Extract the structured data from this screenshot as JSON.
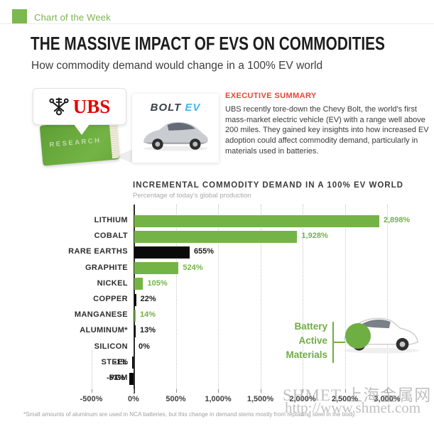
{
  "header": {
    "label": "Chart of the Week",
    "badge_color": "#7cb84e",
    "label_color": "#7cb34d"
  },
  "title": "THE MASSIVE IMPACT OF EVS ON COMMODITIES",
  "subtitle": "How commodity demand would change in a 100% EV world",
  "source_graphic": {
    "ubs_label": "UBS",
    "research_label": "RESEARCH",
    "bolt_label": "BOLT",
    "ev_label": "EV"
  },
  "executive_summary": {
    "heading": "EXECUTIVE SUMMARY",
    "heading_color": "#e8453a",
    "body": "UBS recently tore-down the Chevy Bolt, the world's first mass-market electric vehicle (EV) with a range well above 200 miles. They gained key insights into how increased EV adoption could affect commodity demand, particularly in materials used in batteries."
  },
  "chart_data": {
    "type": "bar",
    "orientation": "horizontal",
    "title": "INCREMENTAL COMMODITY DEMAND IN A 100% EV WORLD",
    "subtitle": "Percentage of today's global production",
    "categories": [
      "LITHIUM",
      "COBALT",
      "RARE EARTHS",
      "GRAPHITE",
      "NICKEL",
      "COPPER",
      "MANGANESE",
      "ALUMINUM*",
      "SILICON",
      "STEEL",
      "PGM"
    ],
    "values": [
      2898,
      1928,
      655,
      524,
      105,
      22,
      14,
      13,
      0,
      -1,
      -53
    ],
    "value_labels": [
      "2,898%",
      "1,928%",
      "655%",
      "524%",
      "105%",
      "22%",
      "14%",
      "13%",
      "0%",
      "-1%",
      "-53%"
    ],
    "bar_colors": [
      "green",
      "green",
      "black",
      "green",
      "green",
      "black",
      "green",
      "black",
      "none",
      "black",
      "black"
    ],
    "x_ticks": [
      "-500%",
      "0%",
      "500%",
      "1,000%",
      "1,500%",
      "2,000%",
      "2,500%",
      "3,000%"
    ],
    "x_tick_values": [
      -500,
      0,
      500,
      1000,
      1500,
      2000,
      2500,
      3000
    ],
    "xlim": [
      -500,
      3000
    ],
    "grid": "dotted-vertical",
    "legend": "none",
    "colors": {
      "green": "#74b446",
      "black": "#0a0a0a",
      "grid": "#c4c4c4",
      "axis": "#2d2d2d"
    }
  },
  "annotation": {
    "lines": [
      "Battery",
      "Active",
      "Materials"
    ],
    "color": "#6fae43"
  },
  "footnote": "*Small amounts of aluminum are used in NCA batteries, but this change in demand stems mostly from replacing steel in the body.",
  "watermark": {
    "line1": "SHMET 上海金属网",
    "line2": "http://www.shmet.com"
  }
}
